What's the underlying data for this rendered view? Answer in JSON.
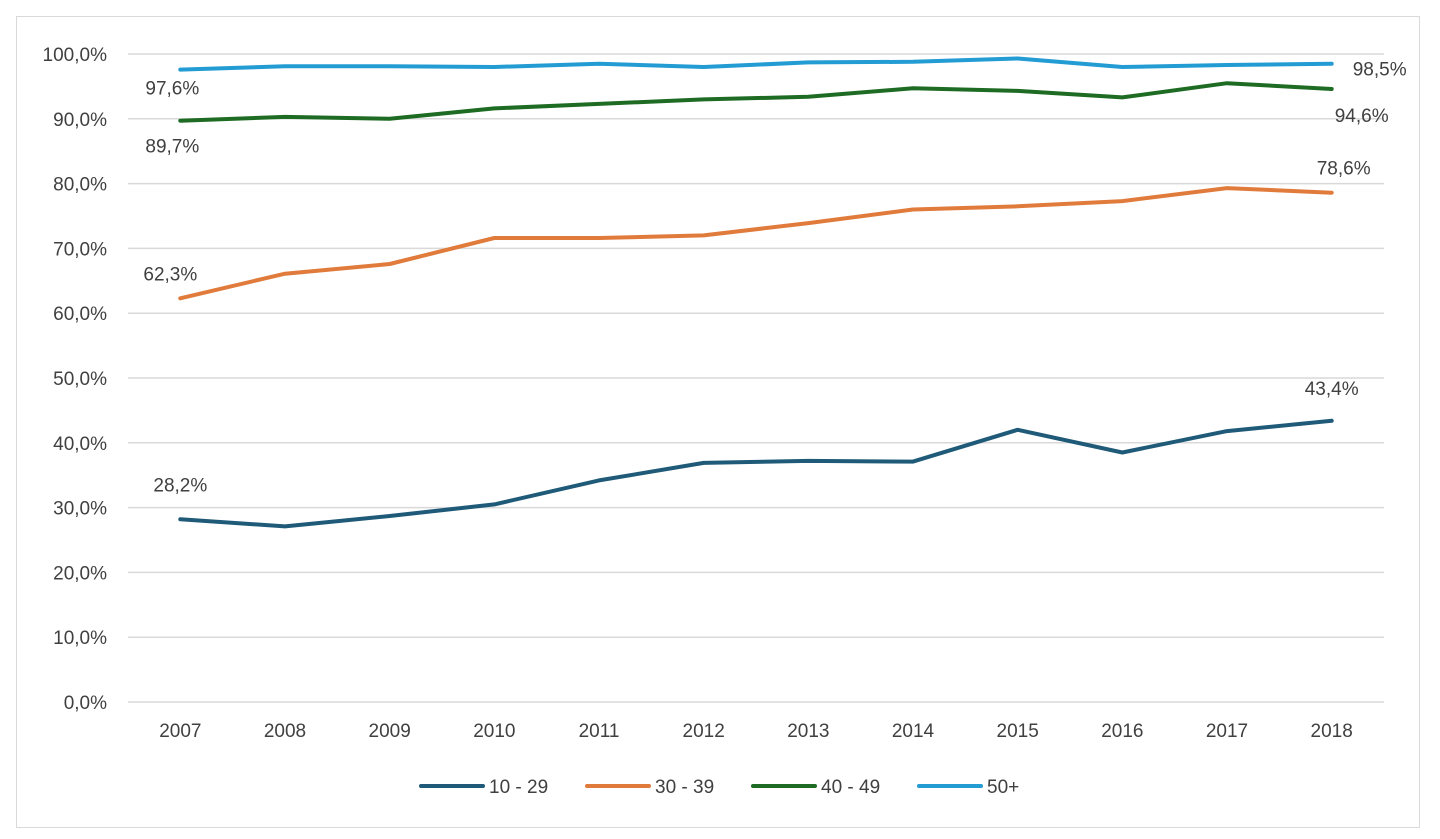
{
  "chart_data": {
    "type": "line",
    "x": [
      "2007",
      "2008",
      "2009",
      "2010",
      "2011",
      "2012",
      "2013",
      "2014",
      "2015",
      "2016",
      "2017",
      "2018"
    ],
    "ylim": [
      0,
      100
    ],
    "yticks": [
      "0,0%",
      "10,0%",
      "20,0%",
      "30,0%",
      "40,0%",
      "50,0%",
      "60,0%",
      "70,0%",
      "80,0%",
      "90,0%",
      "100,0%"
    ],
    "grid": true,
    "legend_position": "bottom",
    "series": [
      {
        "name": "10 - 29",
        "color": "#1f5a78",
        "values": [
          28.2,
          27.1,
          28.7,
          30.5,
          34.2,
          36.9,
          37.2,
          37.1,
          42.0,
          38.5,
          41.8,
          43.4
        ],
        "labels": [
          {
            "index": 0,
            "text": "28,2%"
          },
          {
            "index": 11,
            "text": "43,4%"
          }
        ]
      },
      {
        "name": "30 - 39",
        "color": "#e07b3c",
        "values": [
          62.3,
          66.1,
          67.6,
          71.6,
          71.6,
          72.0,
          73.9,
          76.0,
          76.5,
          77.3,
          79.3,
          78.6
        ],
        "labels": [
          {
            "index": 0,
            "text": "62,3%"
          },
          {
            "index": 11,
            "text": "78,6%"
          }
        ]
      },
      {
        "name": "40 - 49",
        "color": "#1e6b23",
        "values": [
          89.7,
          90.3,
          90.0,
          91.6,
          92.3,
          93.0,
          93.4,
          94.7,
          94.3,
          93.3,
          95.5,
          94.6
        ],
        "labels": [
          {
            "index": 0,
            "text": "89,7%"
          },
          {
            "index": 11,
            "text": "94,6%"
          }
        ]
      },
      {
        "name": "50+",
        "color": "#239bd3",
        "values": [
          97.6,
          98.1,
          98.1,
          98.0,
          98.5,
          98.0,
          98.7,
          98.8,
          99.3,
          98.0,
          98.3,
          98.5
        ],
        "labels": [
          {
            "index": 0,
            "text": "97,6%"
          },
          {
            "index": 11,
            "text": "98,5%"
          }
        ]
      }
    ]
  }
}
